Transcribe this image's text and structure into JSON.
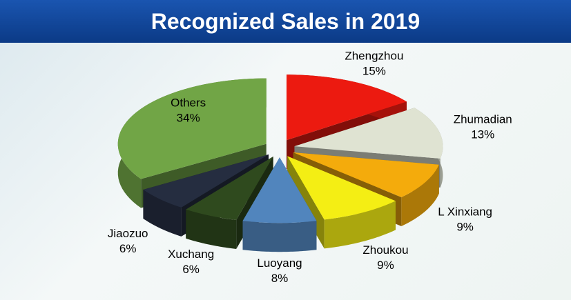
{
  "chart_data": {
    "type": "pie",
    "title": "Recognized Sales in 2019",
    "categories": [
      "Zhengzhou",
      "Zhumadian",
      "L Xinxiang",
      "Zhoukou",
      "Luoyang",
      "Xuchang",
      "Jiaozuo",
      "Others"
    ],
    "values": [
      15,
      13,
      9,
      9,
      8,
      6,
      6,
      34
    ],
    "value_labels": [
      "15%",
      "13%",
      "9%",
      "9%",
      "8%",
      "6%",
      "6%",
      "34%"
    ],
    "colors": [
      "#ec1a10",
      "#dfe3d2",
      "#f4ab0c",
      "#f4ee14",
      "#5185bd",
      "#2f4a1e",
      "#252d40",
      "#71a546"
    ]
  }
}
